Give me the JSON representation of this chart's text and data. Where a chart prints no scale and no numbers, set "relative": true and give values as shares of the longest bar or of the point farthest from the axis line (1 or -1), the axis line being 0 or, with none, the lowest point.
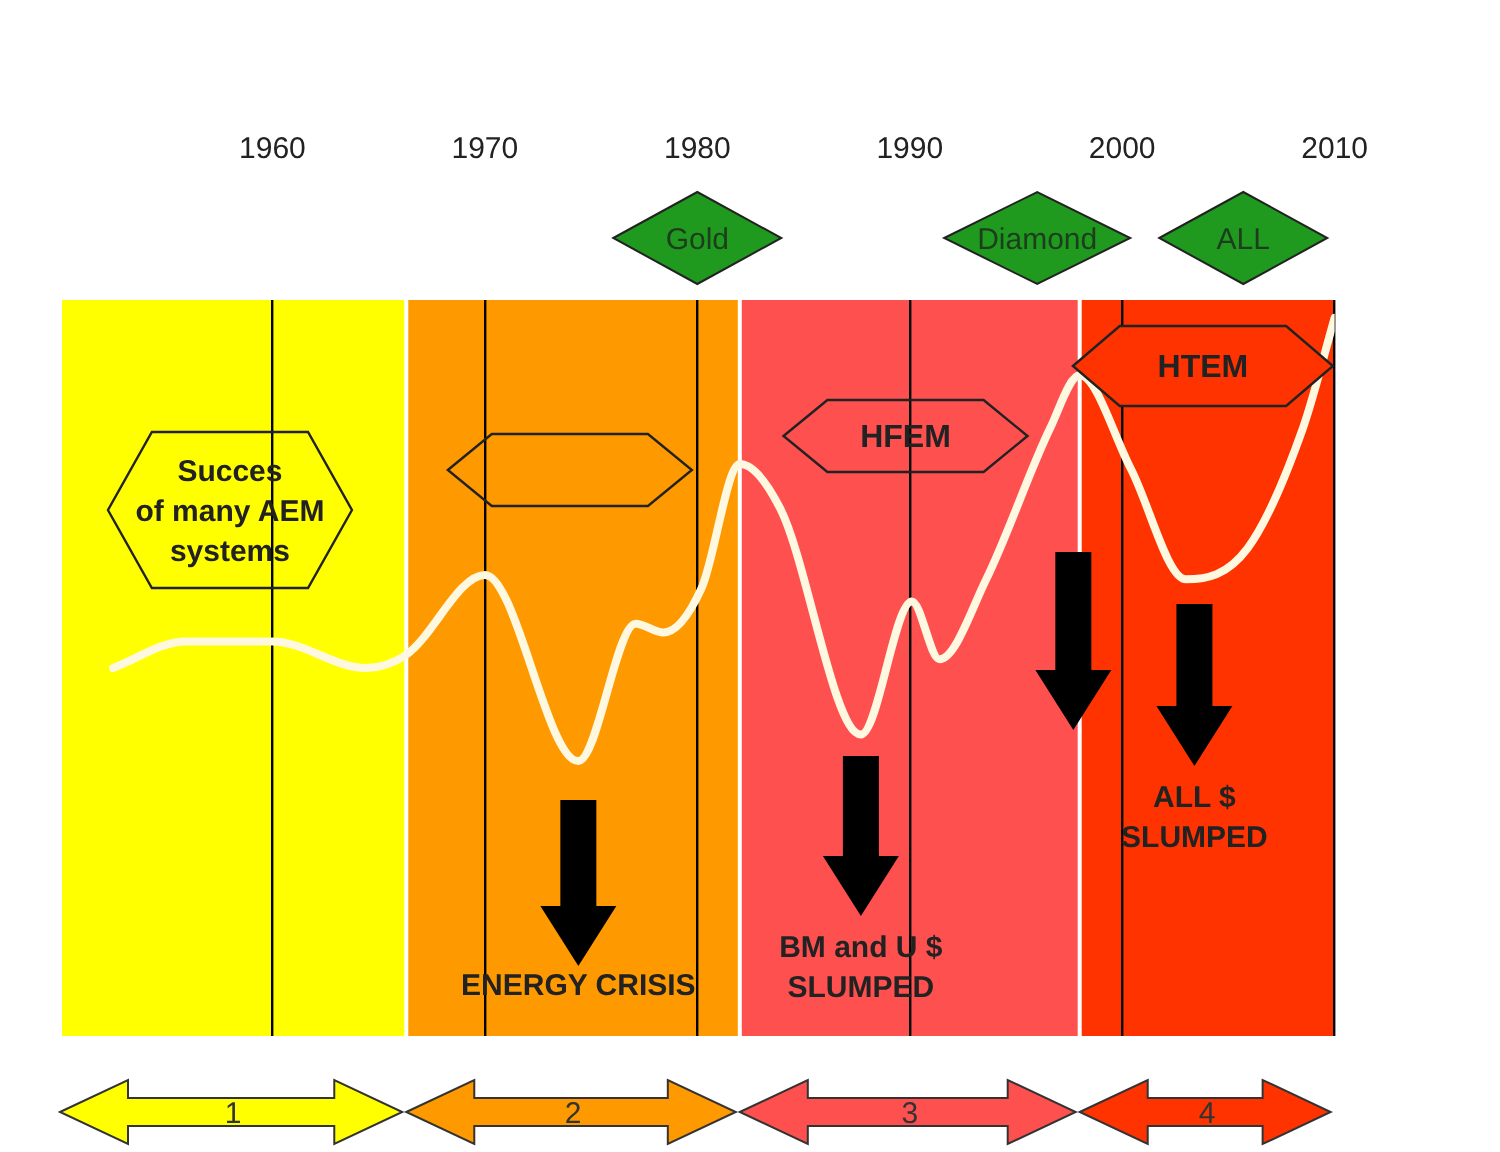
{
  "chart_data": {
    "type": "line",
    "relative": true,
    "xlim": [
      1950,
      2010
    ],
    "xticks": [
      1960,
      1970,
      1980,
      1990,
      2000,
      2010
    ],
    "grid": "x",
    "marker": "none",
    "series": [
      {
        "color": "#fff8e0",
        "x": [
          1952.5,
          1955.9,
          1960,
          1964.4,
          1966.3,
          1970,
          1974.4,
          1977.1,
          1978.4,
          1980.2,
          1982,
          1983.9,
          1987.7,
          1990.1,
          1991.4,
          1993.6,
          1996.6,
          1998,
          2000.4,
          2003,
          2005.9,
          2008.5,
          2010
        ],
        "values": [
          0.21,
          0.27,
          0.27,
          0.21,
          0.24,
          0.42,
          0,
          0.31,
          0.29,
          0.39,
          0.67,
          0.57,
          0.06,
          0.36,
          0.23,
          0.41,
          0.75,
          0.87,
          0.66,
          0.41,
          0.48,
          0.75,
          1
        ]
      }
    ],
    "bands": [
      {
        "axis": "x",
        "from": 1950,
        "to": 1966.3,
        "label": "1",
        "color": "#ffff00"
      },
      {
        "axis": "x",
        "from": 1966.3,
        "to": 1982,
        "label": "2",
        "color": "#ff9900"
      },
      {
        "axis": "x",
        "from": 1982,
        "to": 1998,
        "label": "3",
        "color": "#ff5050"
      },
      {
        "axis": "x",
        "from": 1998,
        "to": 2010,
        "label": "4",
        "color": "#ff3300"
      }
    ],
    "annotations": [
      "Succes\nof many AEM\nsystems",
      "HFEM",
      "HTEM",
      "Gold",
      "Diamond",
      "ALL",
      "ENERGY CRISIS",
      "BM and U $\nSLUMPED",
      "ALL $\nSLUMPED"
    ]
  }
}
